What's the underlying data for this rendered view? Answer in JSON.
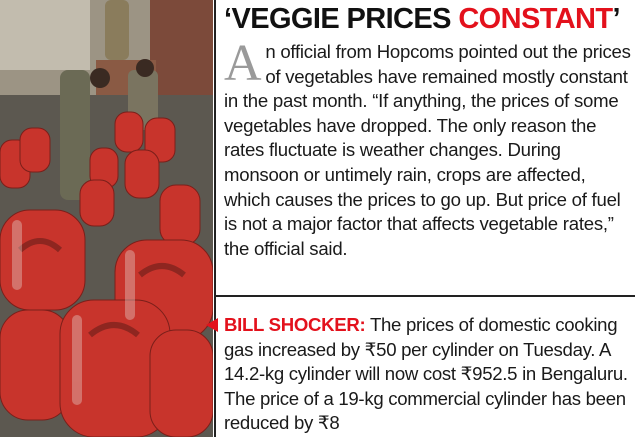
{
  "headline": {
    "part1": "‘VEGGIE PRICES ",
    "part2": "CONSTANT",
    "part3": "’"
  },
  "story1": {
    "dropcap": "A",
    "text": "n official from Hopcoms pointed out the prices of vegetables have remained mostly constant in the past month. “If anything, the prices of some vegetables have dropped. The only reason the rates fluctuate is weather changes. During monsoon or untimely rain, crops are affected, which causes the prices to go up. But price of fuel is not a major factor that affects vegetable rates,” the official said."
  },
  "story2": {
    "kicker": "BILL SHOCKER:",
    "text": " The prices of domestic cooking gas increased by ₹50 per cylinder on Tuesday. A 14.2-kg cylinder will now cost ₹952.5 in Bengaluru. The price of a 19-kg commercial cylinder has been reduced by ₹8"
  },
  "colors": {
    "accent_red": "#e3111c",
    "cylinder_red": "#c8342c",
    "text": "#1a1a1a"
  }
}
